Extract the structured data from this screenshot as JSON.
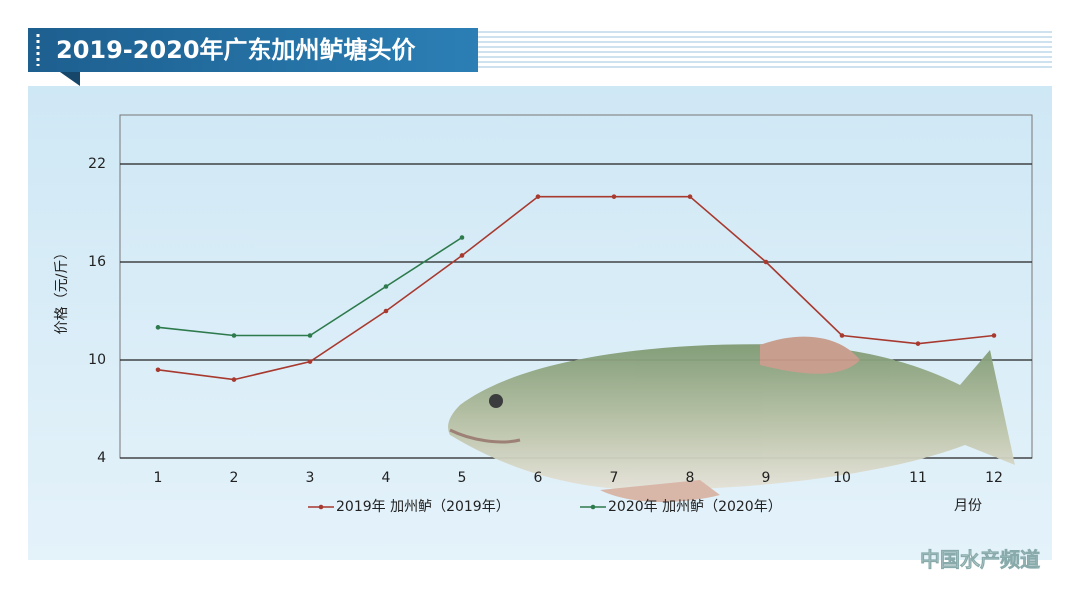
{
  "chart_data": {
    "type": "line",
    "title": "2019-2020年广东加州鲈塘头价",
    "x_label": "月份",
    "y_label": "价格（元/斤）",
    "categories": [
      "1",
      "2",
      "3",
      "4",
      "5",
      "6",
      "7",
      "8",
      "9",
      "10",
      "11",
      "12"
    ],
    "series": [
      {
        "name": "2019年 加州鲈（2019年）",
        "color": "#a8392f",
        "values": [
          9.4,
          8.8,
          9.9,
          13,
          16.4,
          20,
          20,
          20,
          16,
          11.5,
          11,
          11.5
        ]
      },
      {
        "name": "2020年 加州鲈（2020年）",
        "color": "#2d7a4c",
        "values": [
          12,
          11.5,
          11.5,
          14.5,
          17.5,
          null,
          null,
          null,
          null,
          null,
          null,
          null
        ]
      }
    ],
    "ylim": [
      4,
      25
    ],
    "yticks": [
      4,
      10,
      16,
      22
    ],
    "grid": true,
    "watermark": "中国水产频道"
  }
}
